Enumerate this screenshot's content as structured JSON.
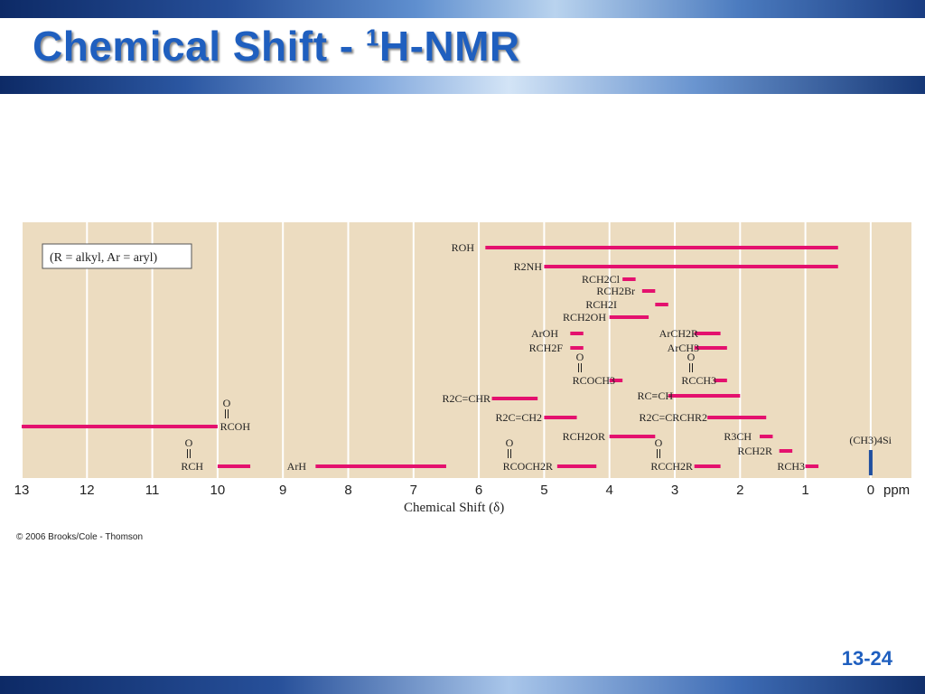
{
  "slide": {
    "title_main": "Chemical Shift - ",
    "title_sup": "1",
    "title_tail": "H-NMR",
    "copyright": "© 2006 Brooks/Cole - Thomson",
    "page_number": "13-24"
  },
  "colors": {
    "panel": "#ecdcc0",
    "bar": "#e4116e",
    "tms_bar": "#1f4fa0",
    "title": "#1f5fbf",
    "grid": "#ffffff"
  },
  "chart_data": {
    "type": "range-bar",
    "xlabel": "Chemical Shift (δ)",
    "unit": "ppm",
    "x_reversed": true,
    "xlim": [
      13,
      0
    ],
    "grid": true,
    "ticks": [
      13,
      12,
      11,
      10,
      9,
      8,
      7,
      6,
      5,
      4,
      3,
      2,
      1,
      0
    ],
    "note": "(R = alkyl, Ar = aryl)",
    "ranges": [
      {
        "label": "ROH",
        "from": 5.9,
        "to": 0.5
      },
      {
        "label": "R2NH",
        "from": 5.0,
        "to": 0.5
      },
      {
        "label": "RCH2Cl",
        "from": 3.8,
        "to": 3.6
      },
      {
        "label": "RCH2Br",
        "from": 3.5,
        "to": 3.3
      },
      {
        "label": "RCH2I",
        "from": 3.3,
        "to": 3.1
      },
      {
        "label": "RCH2OH",
        "from": 4.0,
        "to": 3.4
      },
      {
        "label": "ArOH",
        "from": 4.6,
        "to": 4.4
      },
      {
        "label": "RCH2F",
        "from": 4.6,
        "to": 4.4
      },
      {
        "label": "ArCH2R",
        "from": 2.7,
        "to": 2.3
      },
      {
        "label": "ArCH3",
        "from": 2.7,
        "to": 2.2
      },
      {
        "label": "RCOCH3",
        "from": 4.0,
        "to": 3.8
      },
      {
        "label": "RCCH3",
        "from": 2.4,
        "to": 2.2
      },
      {
        "label": "RC≡CH",
        "from": 3.1,
        "to": 2.0
      },
      {
        "label": "R2C=CHR",
        "from": 5.8,
        "to": 5.1
      },
      {
        "label": "R2C=CH2",
        "from": 5.0,
        "to": 4.5
      },
      {
        "label": "R2C=CRCHR2",
        "from": 2.5,
        "to": 1.6
      },
      {
        "label": "RCOH",
        "from": 13.0,
        "to": 10.0
      },
      {
        "label": "RCH2OR",
        "from": 4.0,
        "to": 3.3
      },
      {
        "label": "R3CH",
        "from": 1.7,
        "to": 1.5
      },
      {
        "label": "RCH2R",
        "from": 1.4,
        "to": 1.2
      },
      {
        "label": "RCH",
        "from": 10.0,
        "to": 9.5
      },
      {
        "label": "ArH",
        "from": 8.5,
        "to": 6.5
      },
      {
        "label": "RCOCH2R",
        "from": 4.8,
        "to": 4.2
      },
      {
        "label": "RCCH2R",
        "from": 2.7,
        "to": 2.3
      },
      {
        "label": "RCH3",
        "from": 1.0,
        "to": 0.8
      },
      {
        "label": "(CH3)4Si",
        "from": 0.0,
        "to": 0.0
      }
    ]
  }
}
